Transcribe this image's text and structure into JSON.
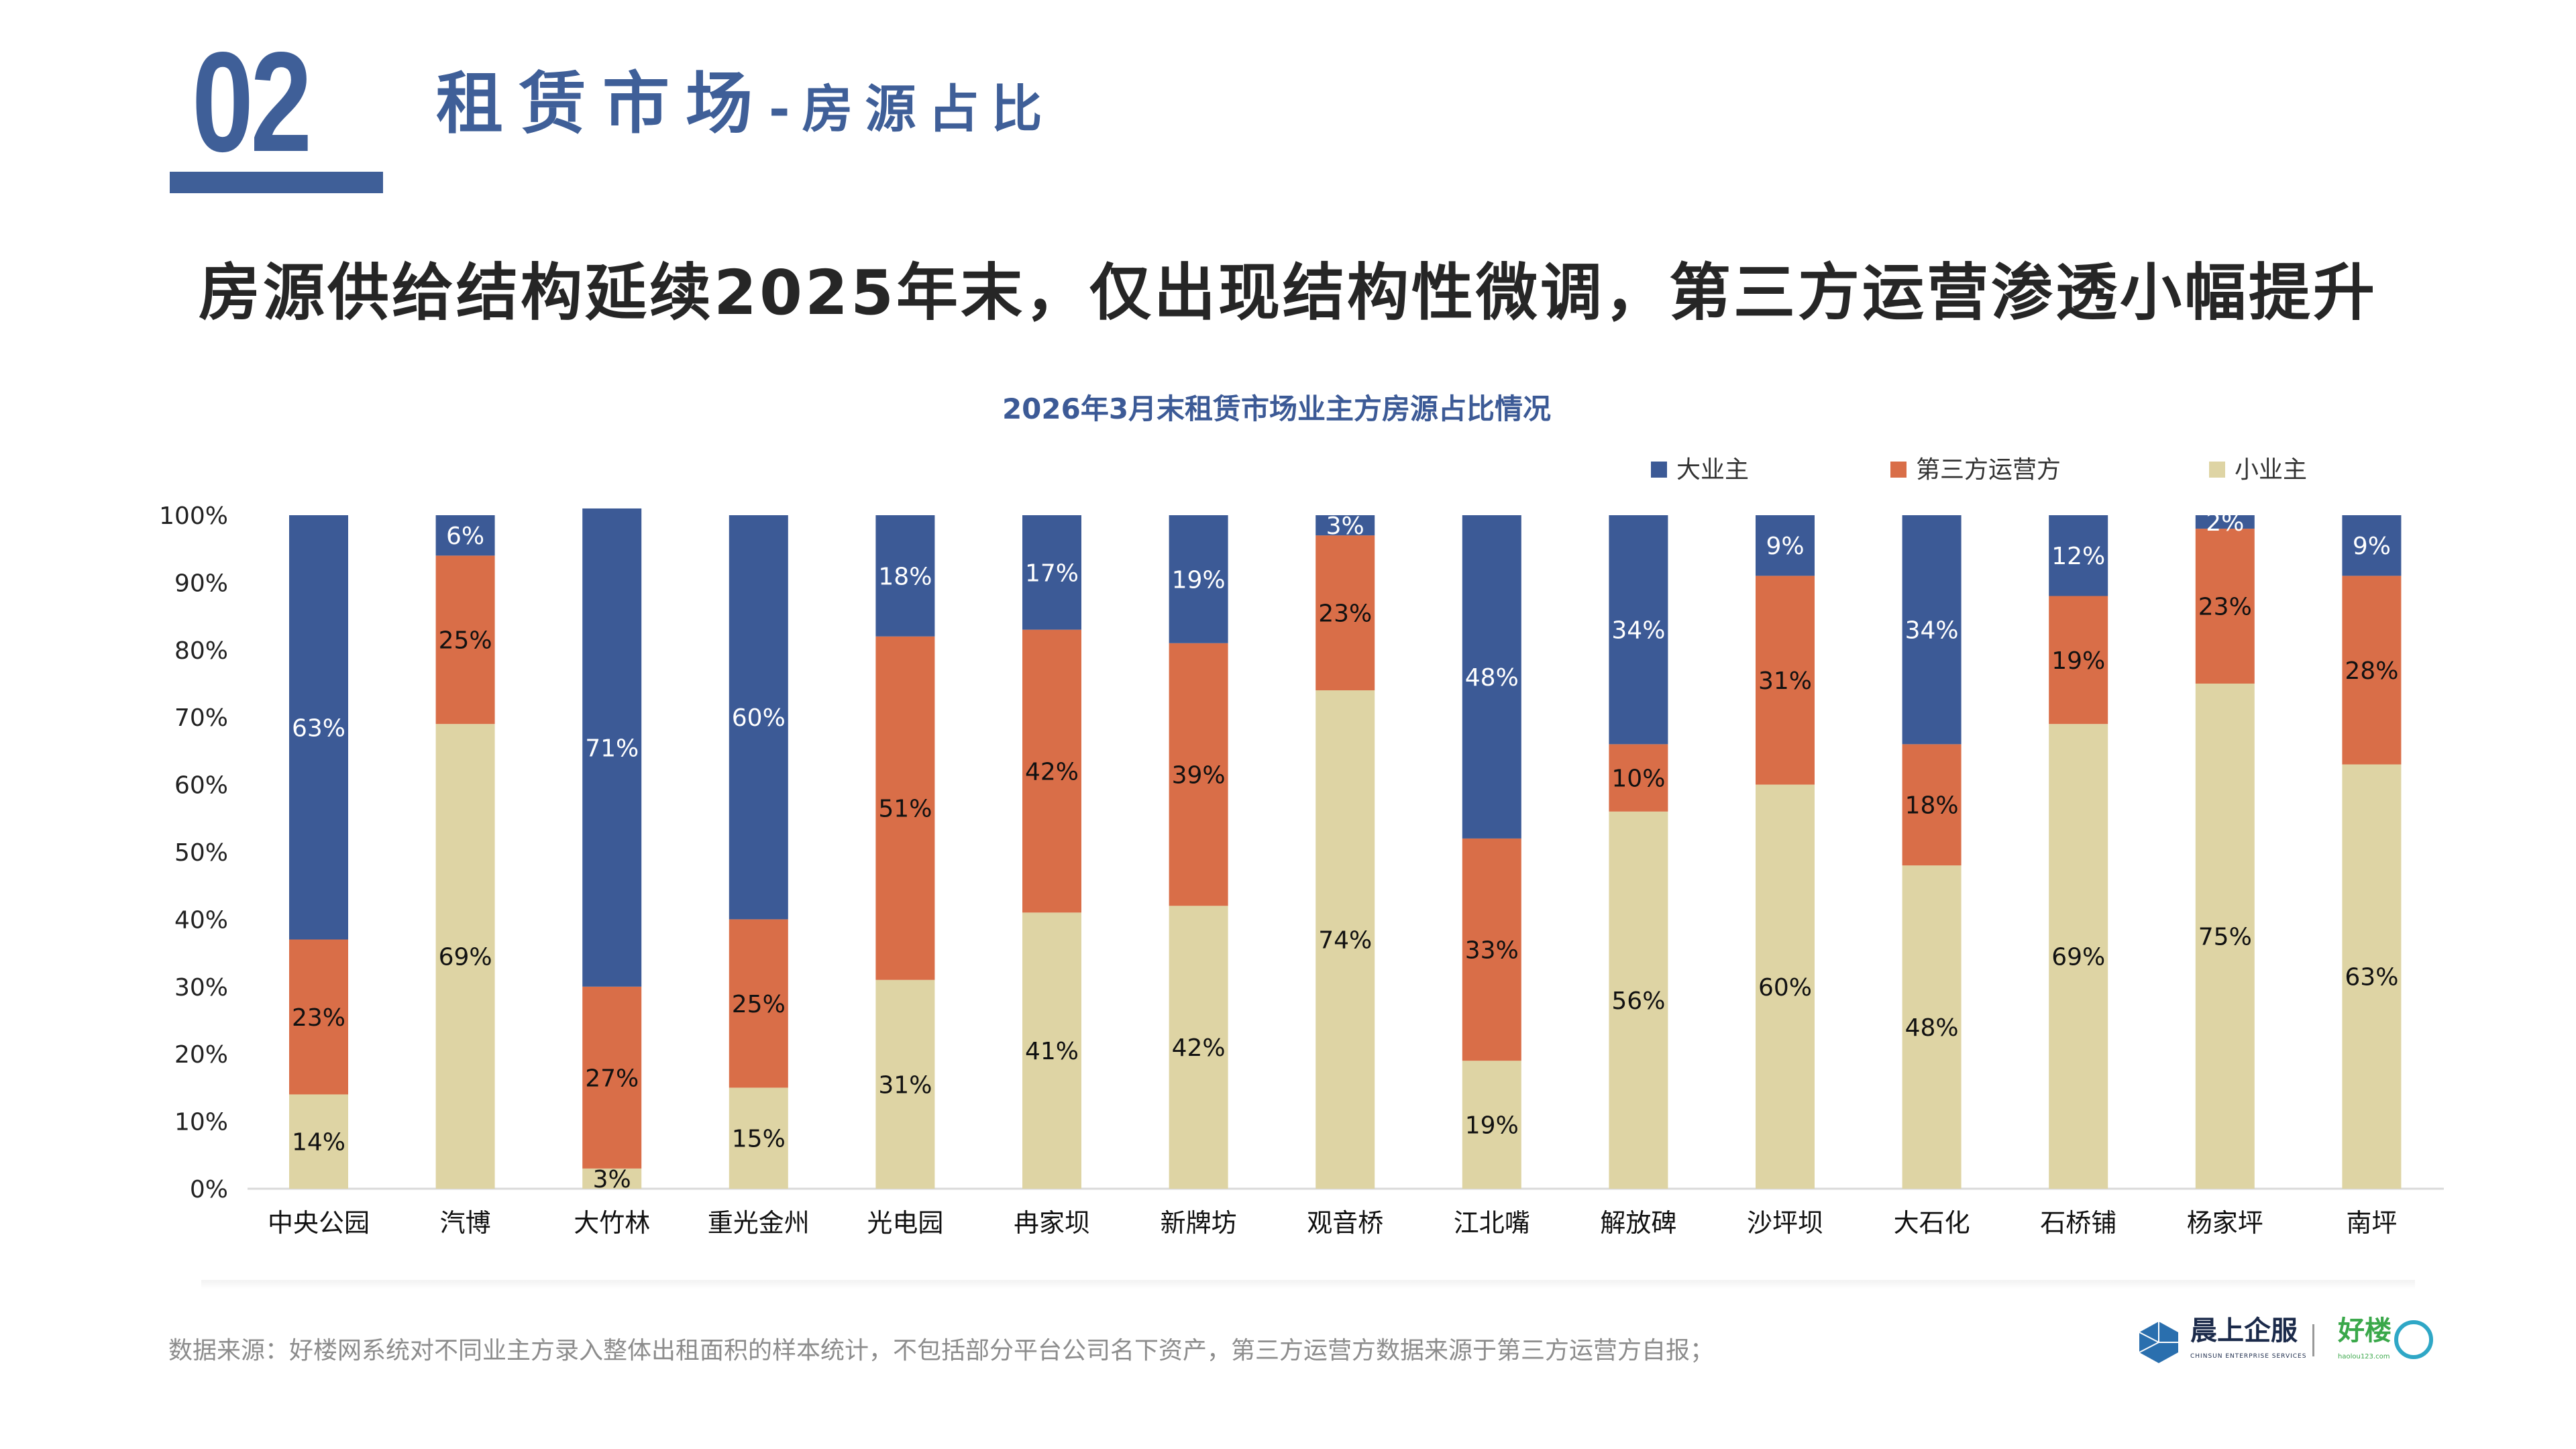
{
  "header": {
    "section_number": "02",
    "section_title": "租赁市场",
    "section_subtitle": "-房源占比"
  },
  "headline": "房源供给结构延续2025年末，仅出现结构性微调，第三方运营渗透小幅提升",
  "footer": {
    "source": "数据来源：好楼网系统对不同业主方录入整体出租面积的样本统计，不包括部分平台公司名下资产，第三方运营方数据来源于第三方运营方自报；"
  },
  "logos": {
    "chinsun_cn": "晨上企服",
    "chinsun_en": "CHINSUN ENTERPRISE SERVICES",
    "haolou_cn": "好楼",
    "haolou_en": "haolou123.com"
  },
  "chart_data": {
    "type": "bar",
    "stacked": true,
    "title": "2026年3月末租赁市场业主方房源占比情况",
    "xlabel": "",
    "ylabel": "",
    "ylim": [
      0,
      100
    ],
    "yticks": [
      "0%",
      "10%",
      "20%",
      "30%",
      "40%",
      "50%",
      "60%",
      "70%",
      "80%",
      "90%",
      "100%"
    ],
    "legend_position": "top-right",
    "categories": [
      "中央公园",
      "汽博",
      "大竹林",
      "重光金州",
      "光电园",
      "冉家坝",
      "新牌坊",
      "观音桥",
      "江北嘴",
      "解放碑",
      "沙坪坝",
      "大石化",
      "石桥铺",
      "杨家坪",
      "南坪"
    ],
    "series": [
      {
        "name": "小业主",
        "color": "#ded4a4",
        "values": [
          14,
          69,
          3,
          15,
          31,
          41,
          42,
          74,
          19,
          56,
          60,
          48,
          69,
          75,
          63
        ]
      },
      {
        "name": "第三方运营方",
        "color": "#d96e48",
        "values": [
          23,
          25,
          27,
          25,
          51,
          42,
          39,
          23,
          33,
          10,
          31,
          18,
          19,
          23,
          28
        ]
      },
      {
        "name": "大业主",
        "color": "#3c5a96",
        "values": [
          63,
          6,
          71,
          60,
          18,
          17,
          19,
          3,
          48,
          34,
          9,
          34,
          12,
          2,
          9
        ]
      }
    ],
    "legend_order": [
      "大业主",
      "第三方运营方",
      "小业主"
    ]
  }
}
